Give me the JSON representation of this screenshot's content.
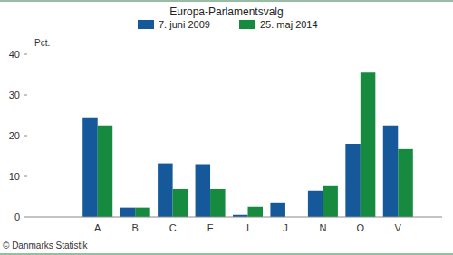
{
  "chart_data": {
    "type": "bar",
    "title": "Europa-Parlamentsvalg",
    "y_label": "Pct.",
    "annotations": [
      "© Danmarks Statistik"
    ],
    "categories": [
      "A",
      "B",
      "C",
      "F",
      "I",
      "J",
      "N",
      "O",
      "V"
    ],
    "series": [
      {
        "name": "7. juni 2009",
        "color": "#15599a",
        "values": [
          24.5,
          2.3,
          13.2,
          13.0,
          0.5,
          3.6,
          6.5,
          18.0,
          22.5
        ]
      },
      {
        "name": "25. maj 2014",
        "color": "#168a3e",
        "values": [
          22.5,
          2.3,
          6.9,
          6.9,
          2.5,
          null,
          7.6,
          35.5,
          16.7
        ]
      }
    ],
    "ylim": [
      0,
      40
    ],
    "yticks": [
      0,
      10,
      20,
      30,
      40
    ],
    "grid": false,
    "legend": "top"
  }
}
